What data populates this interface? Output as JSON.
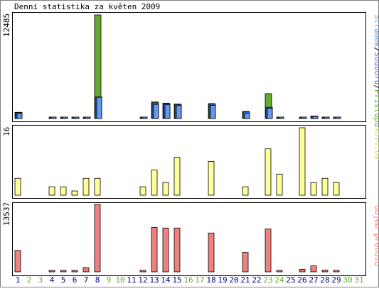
{
  "chart_data": [
    {
      "type": "bar",
      "title": "Denní statistika za květen 2009",
      "ylabel_parts": [
        {
          "text": "Stránek",
          "color": "#6699cc"
        },
        {
          "text": "/",
          "color": "#000000"
        },
        {
          "text": "Souborů",
          "color": "#6666cc"
        },
        {
          "text": "/",
          "color": "#000000"
        },
        {
          "text": "Přístupů",
          "color": "#66aa33"
        }
      ],
      "ymax_label": "12485",
      "ylim": [
        0,
        12485
      ],
      "categories": [
        "1",
        "2",
        "3",
        "4",
        "5",
        "6",
        "7",
        "8",
        "9",
        "10",
        "11",
        "12",
        "13",
        "14",
        "15",
        "16",
        "17",
        "18",
        "19",
        "20",
        "21",
        "22",
        "23",
        "24",
        "25",
        "26",
        "27",
        "28",
        "29",
        "30",
        "31"
      ],
      "weekend_days": [
        "2",
        "3",
        "9",
        "10",
        "16",
        "17",
        "23",
        "24",
        "30",
        "31"
      ],
      "series": [
        {
          "name": "Přístupů",
          "color": "#66aa33",
          "values": [
            750,
            0,
            0,
            80,
            80,
            80,
            150,
            12485,
            0,
            0,
            0,
            80,
            2000,
            1850,
            1750,
            0,
            0,
            1800,
            0,
            0,
            850,
            0,
            3000,
            120,
            0,
            80,
            300,
            80,
            80,
            0,
            0
          ]
        },
        {
          "name": "Souborů",
          "color": "#3366cc",
          "values": [
            720,
            0,
            0,
            70,
            70,
            70,
            140,
            2600,
            0,
            0,
            0,
            70,
            1900,
            1800,
            1700,
            0,
            0,
            1750,
            0,
            0,
            800,
            0,
            1350,
            110,
            0,
            70,
            280,
            70,
            70,
            0,
            0
          ]
        },
        {
          "name": "Stránek",
          "color": "#6699ee",
          "values": [
            600,
            0,
            0,
            60,
            60,
            60,
            120,
            2550,
            0,
            0,
            0,
            60,
            1700,
            1650,
            1550,
            0,
            0,
            1600,
            0,
            0,
            650,
            0,
            1250,
            100,
            0,
            60,
            250,
            60,
            60,
            0,
            0
          ]
        }
      ]
    },
    {
      "type": "bar",
      "ylabel": "Návštěv",
      "ymax_label": "16",
      "ylim": [
        0,
        16
      ],
      "categories": [
        "1",
        "2",
        "3",
        "4",
        "5",
        "6",
        "7",
        "8",
        "9",
        "10",
        "11",
        "12",
        "13",
        "14",
        "15",
        "16",
        "17",
        "18",
        "19",
        "20",
        "21",
        "22",
        "23",
        "24",
        "25",
        "26",
        "27",
        "28",
        "29",
        "30",
        "31"
      ],
      "series": [
        {
          "name": "Návštěv",
          "color": "#ffff99",
          "values": [
            4,
            0,
            0,
            2,
            2,
            1,
            4,
            4,
            0,
            0,
            0,
            2,
            6,
            3,
            9,
            0,
            0,
            8,
            0,
            0,
            2,
            0,
            11,
            5,
            0,
            16,
            3,
            4,
            3,
            0,
            0
          ]
        }
      ]
    },
    {
      "type": "bar",
      "ylabel": "Objem přenosu",
      "ymax_label": "13537",
      "ylim": [
        0,
        13537
      ],
      "categories": [
        "1",
        "2",
        "3",
        "4",
        "5",
        "6",
        "7",
        "8",
        "9",
        "10",
        "11",
        "12",
        "13",
        "14",
        "15",
        "16",
        "17",
        "18",
        "19",
        "20",
        "21",
        "22",
        "23",
        "24",
        "25",
        "26",
        "27",
        "28",
        "29",
        "30",
        "31"
      ],
      "series": [
        {
          "name": "Objem přenosu",
          "color": "#f08080",
          "values": [
            4300,
            0,
            0,
            150,
            120,
            100,
            850,
            13537,
            0,
            0,
            0,
            300,
            8900,
            8800,
            8800,
            0,
            0,
            7800,
            0,
            0,
            3900,
            0,
            8600,
            300,
            0,
            500,
            1200,
            350,
            200,
            0,
            0
          ]
        }
      ]
    }
  ],
  "colors": {
    "weekday_label": "#000088",
    "weekend_label": "#66aa33",
    "border": "#808080",
    "visits_label": "#e0e080",
    "volume_label": "#f08080"
  }
}
